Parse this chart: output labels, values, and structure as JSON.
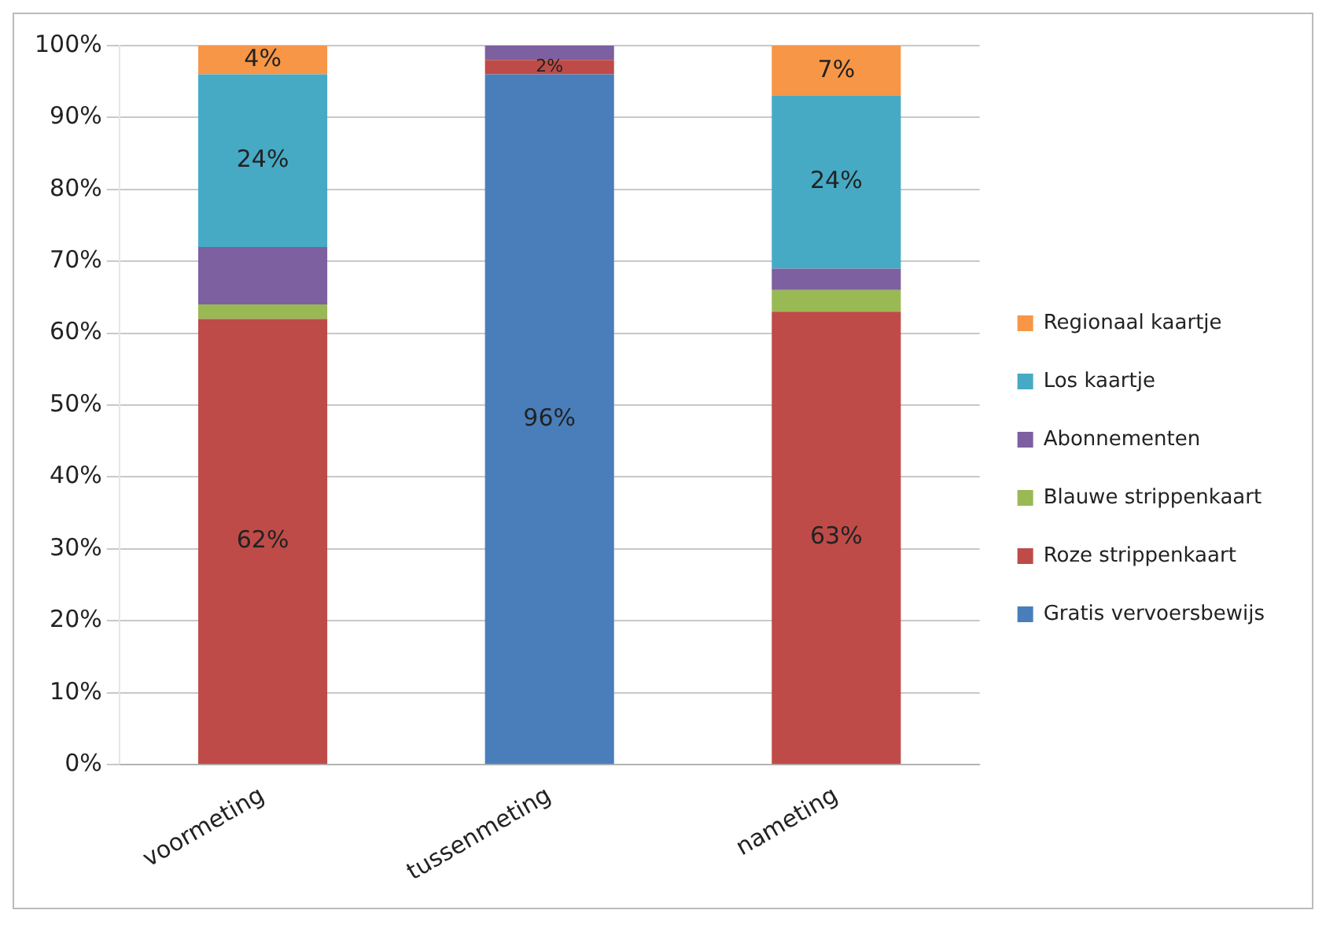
{
  "chart_data": {
    "type": "bar",
    "stacked": true,
    "categories": [
      "voormeting",
      "tussenmeting",
      "nameting"
    ],
    "series": [
      {
        "name": "Gratis vervoersbewijs",
        "color": "#4a7ebb",
        "values": [
          0,
          96,
          0
        ],
        "value_labels": [
          null,
          "96%",
          null
        ]
      },
      {
        "name": "Roze strippenkaart",
        "color": "#be4b48",
        "values": [
          62,
          2,
          63
        ],
        "value_labels": [
          "62%",
          "2%",
          "63%"
        ]
      },
      {
        "name": "Blauwe strippenkaart",
        "color": "#98b954",
        "values": [
          2,
          0,
          3
        ],
        "value_labels": [
          null,
          null,
          null
        ]
      },
      {
        "name": "Abonnementen",
        "color": "#7d60a0",
        "values": [
          8,
          2,
          3
        ],
        "value_labels": [
          null,
          null,
          null
        ]
      },
      {
        "name": "Los kaartje",
        "color": "#46aac5",
        "values": [
          24,
          0,
          24
        ],
        "value_labels": [
          "24%",
          null,
          "24%"
        ]
      },
      {
        "name": "Regionaal kaartje",
        "color": "#f79646",
        "values": [
          4,
          0,
          7
        ],
        "value_labels": [
          "4%",
          null,
          "7%"
        ]
      }
    ],
    "ylim": [
      0,
      100
    ],
    "yticks": [
      {
        "value": 0,
        "label": "0%"
      },
      {
        "value": 10,
        "label": "10%"
      },
      {
        "value": 20,
        "label": "20%"
      },
      {
        "value": 30,
        "label": "30%"
      },
      {
        "value": 40,
        "label": "40%"
      },
      {
        "value": 50,
        "label": "50%"
      },
      {
        "value": 60,
        "label": "60%"
      },
      {
        "value": 70,
        "label": "70%"
      },
      {
        "value": 80,
        "label": "80%"
      },
      {
        "value": 90,
        "label": "90%"
      },
      {
        "value": 100,
        "label": "100%"
      }
    ],
    "grid": "y",
    "legend": "right"
  }
}
